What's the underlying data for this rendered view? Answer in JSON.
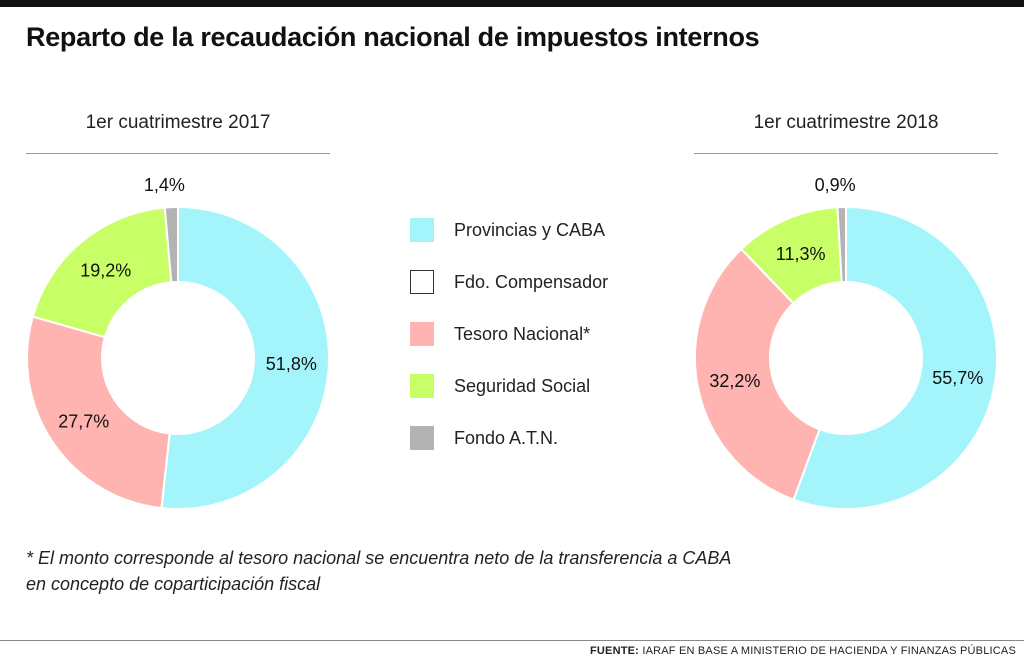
{
  "title": "Reparto de la recaudación nacional de impuestos internos",
  "chart_data": [
    {
      "type": "pie",
      "title": "1er cuatrimestre 2017",
      "categories": [
        "Provincias y CABA",
        "Fdo. Compensador",
        "Tesoro Nacional*",
        "Seguridad Social",
        "Fondo A.T.N."
      ],
      "values": [
        51.8,
        0,
        27.7,
        19.2,
        1.4
      ],
      "labels": [
        "51,8%",
        "",
        "27,7%",
        "19,2%",
        "1,4%"
      ]
    },
    {
      "type": "pie",
      "title": "1er cuatrimestre 2018",
      "categories": [
        "Provincias y CABA",
        "Fdo. Compensador",
        "Tesoro Nacional*",
        "Seguridad Social",
        "Fondo A.T.N."
      ],
      "values": [
        55.7,
        0,
        32.2,
        11.3,
        0.9
      ],
      "labels": [
        "55,7%",
        "",
        "32,2%",
        "11,3%",
        "0,9%"
      ]
    }
  ],
  "legend": {
    "items": [
      {
        "label": "Provincias y CABA",
        "color": "#a3f4fb"
      },
      {
        "label": "Fdo. Compensador",
        "color": "#ffffff"
      },
      {
        "label": "Tesoro Nacional*",
        "color": "#ffb4b2"
      },
      {
        "label": "Seguridad Social",
        "color": "#c9ff66"
      },
      {
        "label": "Fondo A.T.N.",
        "color": "#b3b3b3"
      }
    ]
  },
  "footnote": {
    "line1": "* El monto corresponde al tesoro nacional se encuentra neto de la transferencia a CABA",
    "line2": "en concepto de coparticipación fiscal"
  },
  "source": {
    "label": "FUENTE:",
    "text": "IARAF EN BASE A MINISTERIO DE HACIENDA Y FINANZAS PÚBLICAS"
  }
}
